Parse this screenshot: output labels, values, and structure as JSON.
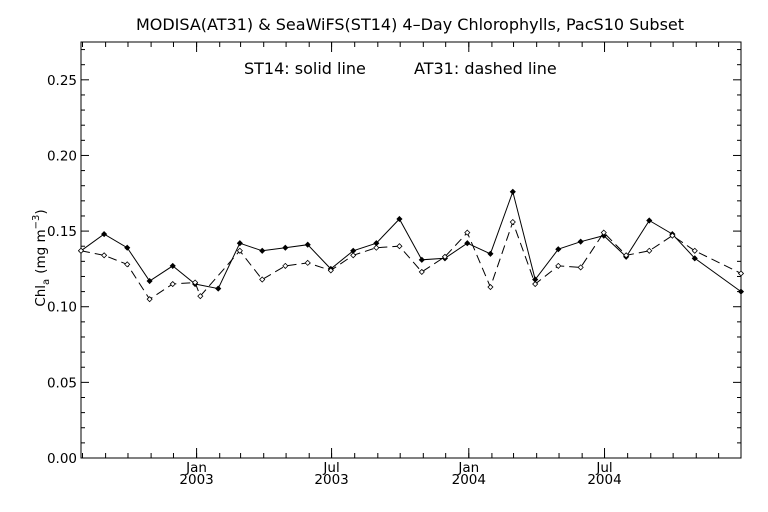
{
  "chart_data": {
    "type": "line",
    "title": "MODISA(AT31) & SeaWiFS(ST14) 4–Day Chlorophylls, PacS10 Subset",
    "annotation_solid": "ST14: solid line",
    "annotation_dashed": "AT31: dashed line",
    "ylabel": "Chl",
    "ylabel_sub": "a",
    "ylabel_unit": "(mg m",
    "ylabel_unit_sup": "−3",
    "ylabel_close": ")",
    "ylim": [
      0.0,
      0.275
    ],
    "yticks": [
      "0.00",
      "0.05",
      "0.10",
      "0.15",
      "0.20",
      "0.25"
    ],
    "xlim": [
      "2002-07-30",
      "2004-12-31"
    ],
    "xticks": [
      {
        "month": "Jan",
        "year": "2003",
        "date": "2003-01-01"
      },
      {
        "month": "Jul",
        "year": "2003",
        "date": "2003-07-01"
      },
      {
        "month": "Jan",
        "year": "2004",
        "date": "2004-01-01"
      },
      {
        "month": "Jul",
        "year": "2004",
        "date": "2004-07-01"
      }
    ],
    "grid": false,
    "series": [
      {
        "name": "ST14",
        "style": "solid",
        "color": "#000000",
        "points": [
          {
            "x": "2002-07-30",
            "y": 0.137
          },
          {
            "x": "2002-08-30",
            "y": 0.148
          },
          {
            "x": "2002-09-30",
            "y": 0.139
          },
          {
            "x": "2002-10-30",
            "y": 0.117
          },
          {
            "x": "2002-11-30",
            "y": 0.127
          },
          {
            "x": "2002-12-30",
            "y": 0.115
          },
          {
            "x": "2003-01-30",
            "y": 0.112
          },
          {
            "x": "2003-02-28",
            "y": 0.142
          },
          {
            "x": "2003-03-30",
            "y": 0.137
          },
          {
            "x": "2003-04-30",
            "y": 0.139
          },
          {
            "x": "2003-05-30",
            "y": 0.141
          },
          {
            "x": "2003-06-30",
            "y": 0.125
          },
          {
            "x": "2003-07-30",
            "y": 0.137
          },
          {
            "x": "2003-08-30",
            "y": 0.142
          },
          {
            "x": "2003-09-30",
            "y": 0.158
          },
          {
            "x": "2003-10-30",
            "y": 0.131
          },
          {
            "x": "2003-11-30",
            "y": 0.132
          },
          {
            "x": "2003-12-30",
            "y": 0.142
          },
          {
            "x": "2004-01-30",
            "y": 0.135
          },
          {
            "x": "2004-02-29",
            "y": 0.176
          },
          {
            "x": "2004-03-30",
            "y": 0.118
          },
          {
            "x": "2004-04-30",
            "y": 0.138
          },
          {
            "x": "2004-05-30",
            "y": 0.143
          },
          {
            "x": "2004-06-30",
            "y": 0.147
          },
          {
            "x": "2004-07-30",
            "y": 0.133
          },
          {
            "x": "2004-08-30",
            "y": 0.157
          },
          {
            "x": "2004-09-30",
            "y": 0.148
          },
          {
            "x": "2004-10-30",
            "y": 0.132
          },
          {
            "x": "2004-12-31",
            "y": 0.11
          }
        ]
      },
      {
        "name": "AT31",
        "style": "dashed",
        "color": "#000000",
        "points": [
          {
            "x": "2002-07-30",
            "y": 0.137
          },
          {
            "x": "2002-08-30",
            "y": 0.134
          },
          {
            "x": "2002-09-30",
            "y": 0.128
          },
          {
            "x": "2002-10-30",
            "y": 0.105
          },
          {
            "x": "2002-11-30",
            "y": 0.115
          },
          {
            "x": "2002-12-30",
            "y": 0.116
          },
          {
            "x": "2003-01-06",
            "y": 0.107
          },
          {
            "x": "2003-02-28",
            "y": 0.137
          },
          {
            "x": "2003-03-30",
            "y": 0.118
          },
          {
            "x": "2003-04-30",
            "y": 0.127
          },
          {
            "x": "2003-05-30",
            "y": 0.129
          },
          {
            "x": "2003-06-30",
            "y": 0.124
          },
          {
            "x": "2003-07-30",
            "y": 0.134
          },
          {
            "x": "2003-08-30",
            "y": 0.139
          },
          {
            "x": "2003-09-30",
            "y": 0.14
          },
          {
            "x": "2003-10-30",
            "y": 0.123
          },
          {
            "x": "2003-11-30",
            "y": 0.133
          },
          {
            "x": "2003-12-30",
            "y": 0.149
          },
          {
            "x": "2004-01-30",
            "y": 0.113
          },
          {
            "x": "2004-02-29",
            "y": 0.156
          },
          {
            "x": "2004-03-30",
            "y": 0.115
          },
          {
            "x": "2004-04-30",
            "y": 0.127
          },
          {
            "x": "2004-05-30",
            "y": 0.126
          },
          {
            "x": "2004-06-30",
            "y": 0.149
          },
          {
            "x": "2004-07-30",
            "y": 0.134
          },
          {
            "x": "2004-08-30",
            "y": 0.137
          },
          {
            "x": "2004-09-30",
            "y": 0.147
          },
          {
            "x": "2004-10-30",
            "y": 0.137
          },
          {
            "x": "2004-12-31",
            "y": 0.122
          }
        ]
      }
    ]
  }
}
